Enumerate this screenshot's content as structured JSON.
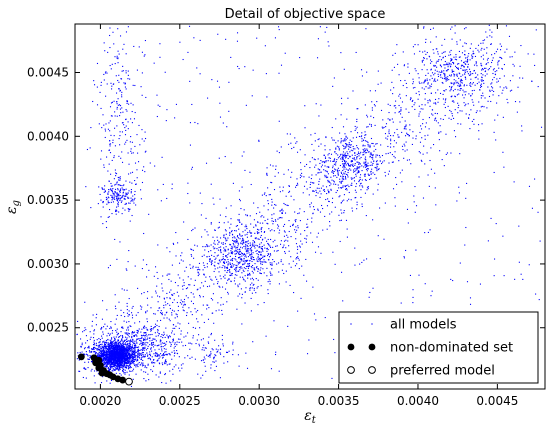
{
  "chart_data": {
    "type": "scatter",
    "title": "Detail of objective space",
    "xlabel": "ε_t",
    "ylabel": "ε_g",
    "xlim": [
      0.00184,
      0.0048
    ],
    "ylim": [
      0.00202,
      0.00488
    ],
    "x_ticks": [
      "0.0020",
      "0.0025",
      "0.0030",
      "0.0035",
      "0.0040",
      "0.0045"
    ],
    "x_tick_values": [
      0.002,
      0.0025,
      0.003,
      0.0035,
      0.004,
      0.0045
    ],
    "y_ticks": [
      "0.0020",
      "0.0025",
      "0.0030",
      "0.0035",
      "0.0040",
      "0.0045"
    ],
    "y_tick_values": [
      0.002,
      0.0025,
      0.003,
      0.0035,
      0.004,
      0.0045
    ],
    "grid": false,
    "legend_position": "bottom-right",
    "series": [
      {
        "name": "all models",
        "marker": "small blue dots",
        "color": "#0000ff",
        "clusters": [
          {
            "center": [
              0.0021,
              0.00228
            ],
            "spread": [
              6e-05,
              5e-05
            ],
            "count": 1600
          },
          {
            "center": [
              0.00218,
              0.00233
            ],
            "spread": [
              0.00018,
              0.0001
            ],
            "count": 700
          },
          {
            "center": [
              0.0029,
              0.00307
            ],
            "spread": [
              0.00015,
              0.00012
            ],
            "count": 500
          },
          {
            "center": [
              0.00356,
              0.00378
            ],
            "spread": [
              0.00012,
              0.0001
            ],
            "count": 380
          },
          {
            "center": [
              0.00425,
              0.00452
            ],
            "spread": [
              0.00015,
              0.00012
            ],
            "count": 320
          },
          {
            "center": [
              0.00212,
              0.00353
            ],
            "spread": [
              5e-05,
              6e-05
            ],
            "count": 160
          },
          {
            "center": [
              0.00212,
              0.0041
            ],
            "spread": [
              8e-05,
              0.0004
            ],
            "count": 260
          },
          {
            "center": [
              0.00272,
              0.00228
            ],
            "spread": [
              6e-05,
              6e-05
            ],
            "count": 60
          }
        ],
        "diagonal_band": {
          "from": [
            0.0021,
            0.00232
          ],
          "to": [
            0.0045,
            0.00465
          ],
          "count": 1400
        },
        "background_scatter": {
          "count": 450
        }
      },
      {
        "name": "non-dominated set",
        "marker": "filled black circles",
        "color": "#000000",
        "points": [
          [
            0.00188,
            0.002272
          ],
          [
            0.00196,
            0.002265
          ],
          [
            0.00199,
            0.002245
          ],
          [
            0.00197,
            0.002225
          ],
          [
            0.002,
            0.002205
          ],
          [
            0.00199,
            0.002185
          ],
          [
            0.00202,
            0.002165
          ],
          [
            0.00201,
            0.002145
          ],
          [
            0.00204,
            0.00214
          ],
          [
            0.00206,
            0.00213
          ],
          [
            0.00208,
            0.002115
          ],
          [
            0.00211,
            0.0021
          ],
          [
            0.00214,
            0.00209
          ],
          [
            0.00218,
            0.00208
          ]
        ]
      },
      {
        "name": "preferred model",
        "marker": "hollow circle",
        "color": "#000000",
        "points": [
          [
            0.00218,
            0.002078
          ]
        ]
      }
    ],
    "legend": [
      {
        "label": "all models",
        "marker": "dot"
      },
      {
        "label": "non-dominated set",
        "marker": "filled"
      },
      {
        "label": "preferred model",
        "marker": "hollow"
      }
    ]
  }
}
